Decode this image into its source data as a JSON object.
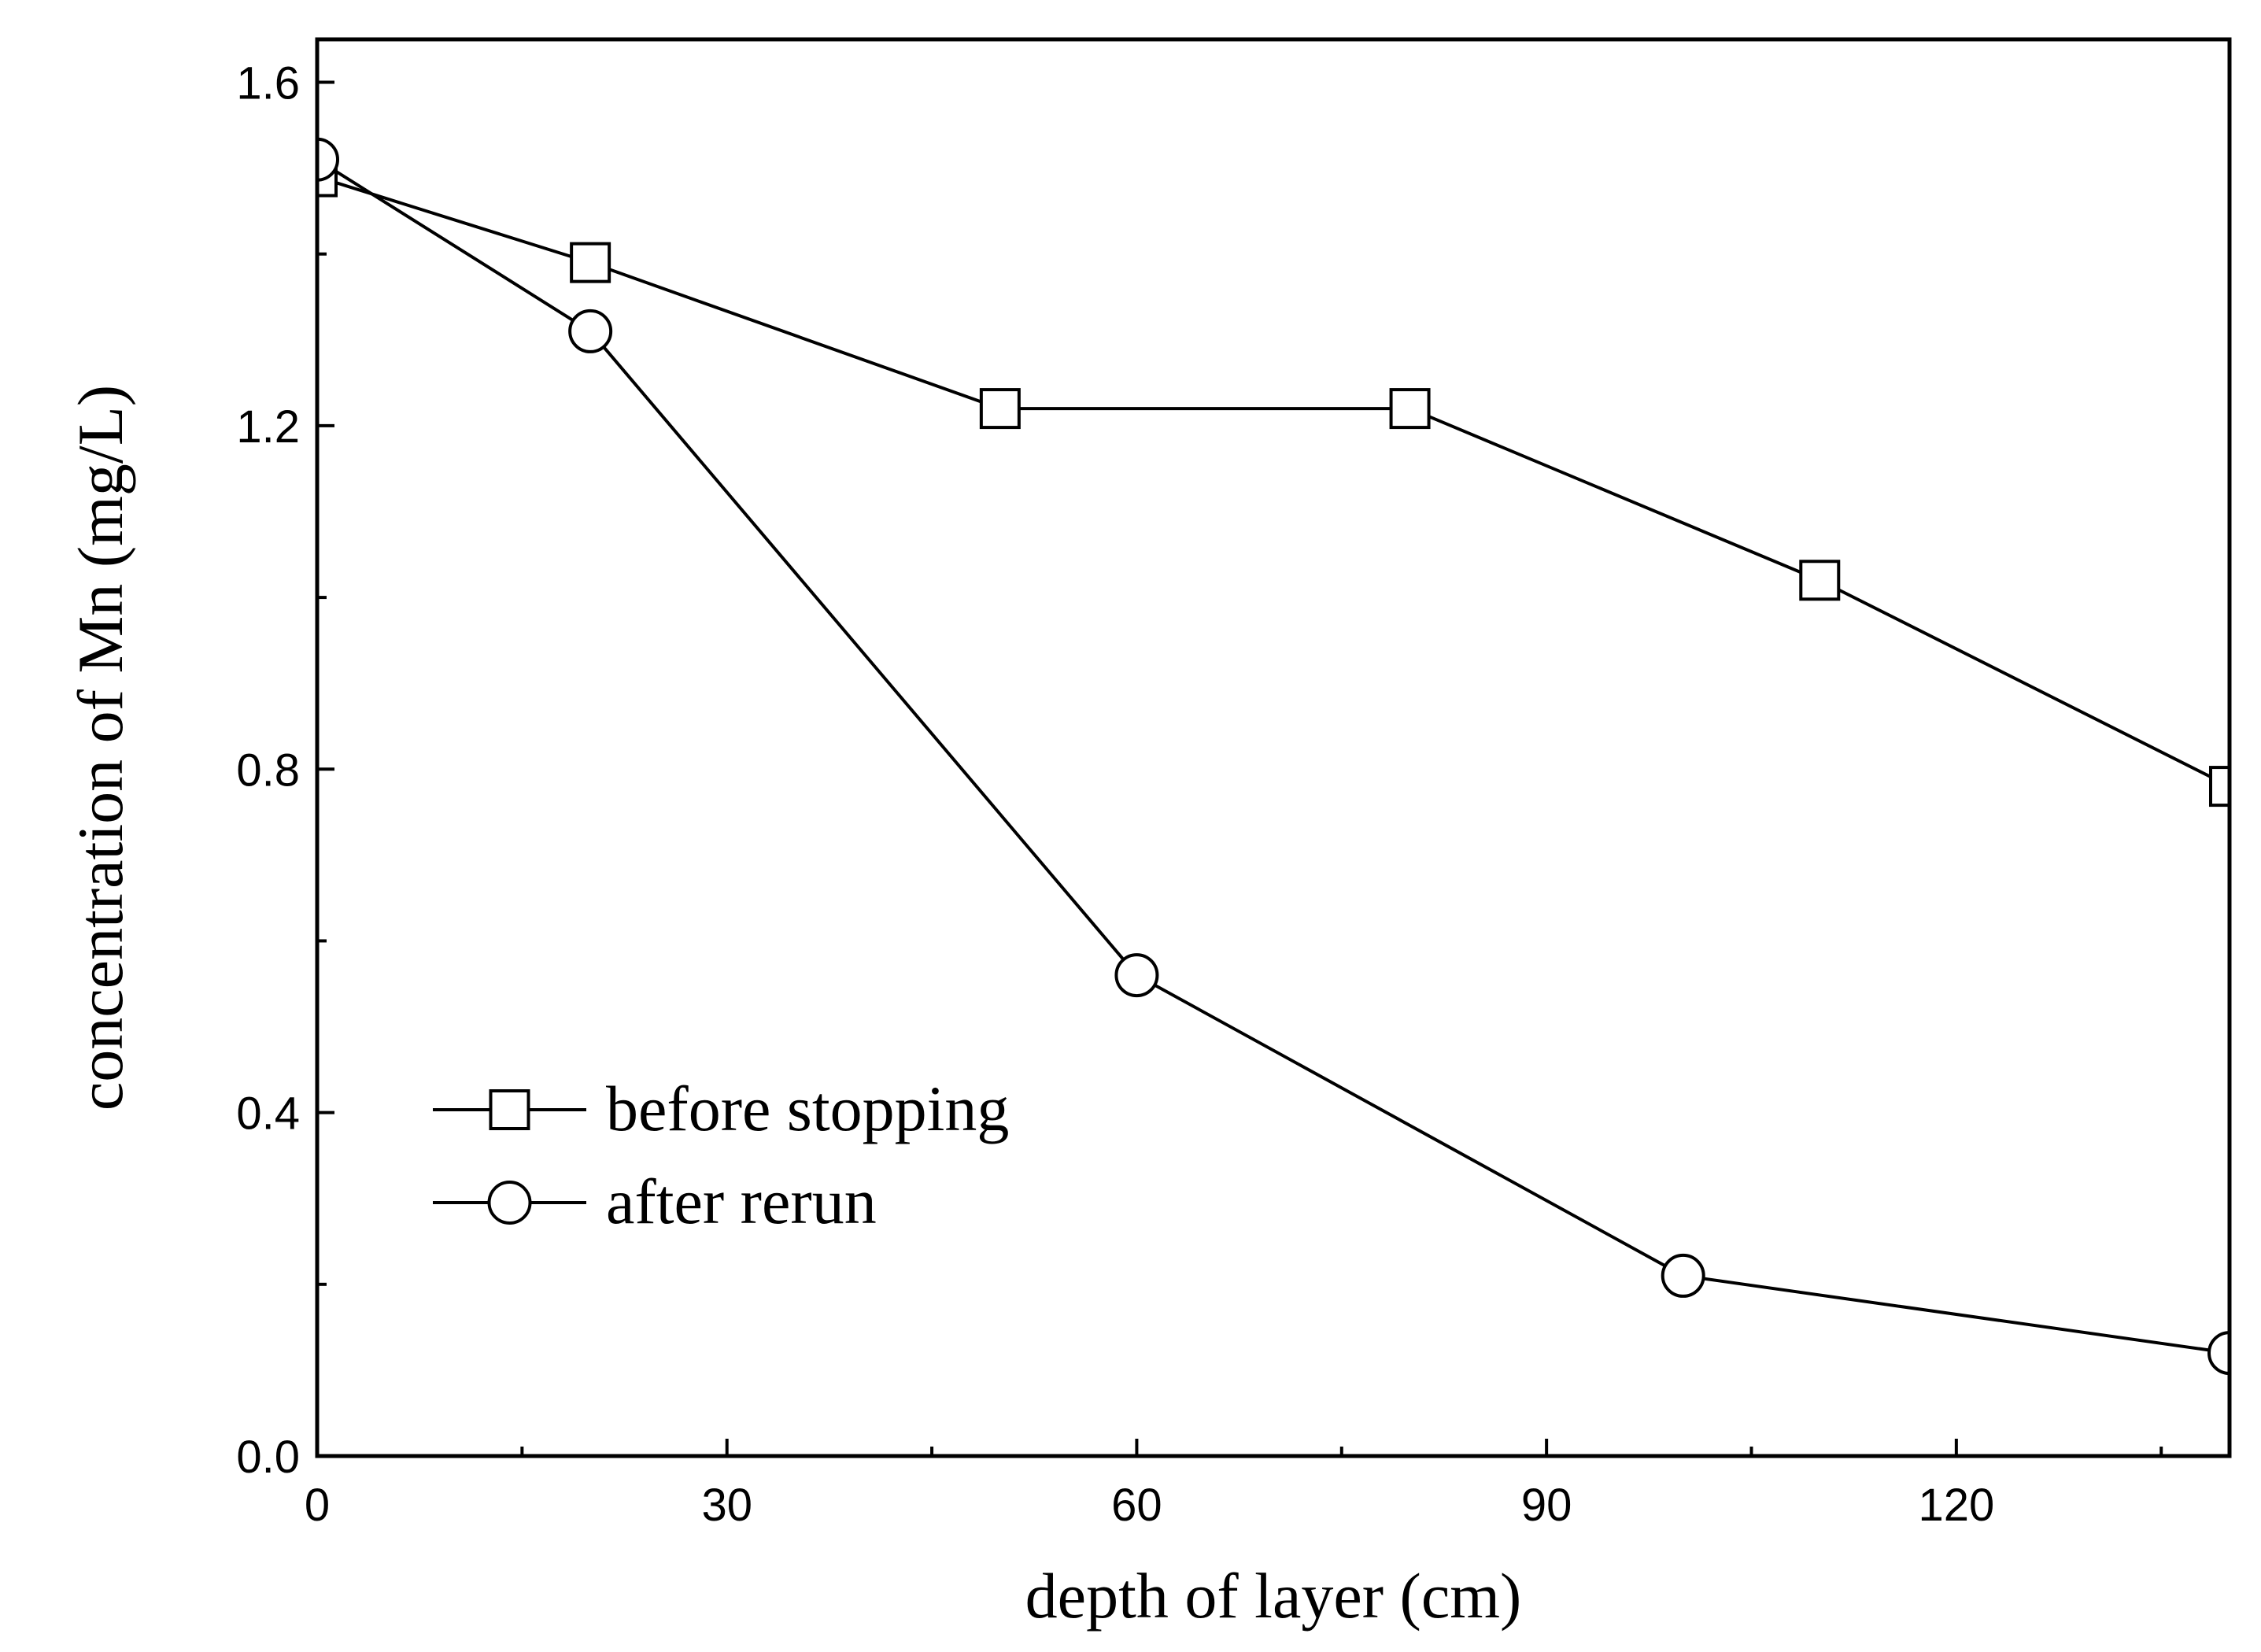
{
  "chart_data": {
    "type": "line",
    "title": "",
    "xlabel": "depth of layer (cm)",
    "ylabel": "concentration of Mn (mg/L)",
    "xlim": [
      0,
      140
    ],
    "ylim": [
      0,
      1.65
    ],
    "x_ticks": [
      "0",
      "30",
      "60",
      "90",
      "120"
    ],
    "x_tick_values": [
      0,
      30,
      60,
      90,
      120
    ],
    "y_ticks": [
      "0.0",
      "0.4",
      "0.8",
      "1.2",
      "1.6"
    ],
    "y_tick_values": [
      0,
      0.4,
      0.8,
      1.2,
      1.6
    ],
    "grid": false,
    "legend_position": "lower-left",
    "series": [
      {
        "name": "before stopping",
        "marker": "square",
        "color": "#000000",
        "x": [
          0,
          20,
          50,
          80,
          110,
          140
        ],
        "y": [
          1.49,
          1.39,
          1.22,
          1.22,
          1.02,
          0.78
        ]
      },
      {
        "name": "after rerun",
        "marker": "circle",
        "color": "#000000",
        "x": [
          0,
          20,
          60,
          100,
          140
        ],
        "y": [
          1.51,
          1.31,
          0.56,
          0.21,
          0.12
        ]
      }
    ]
  }
}
